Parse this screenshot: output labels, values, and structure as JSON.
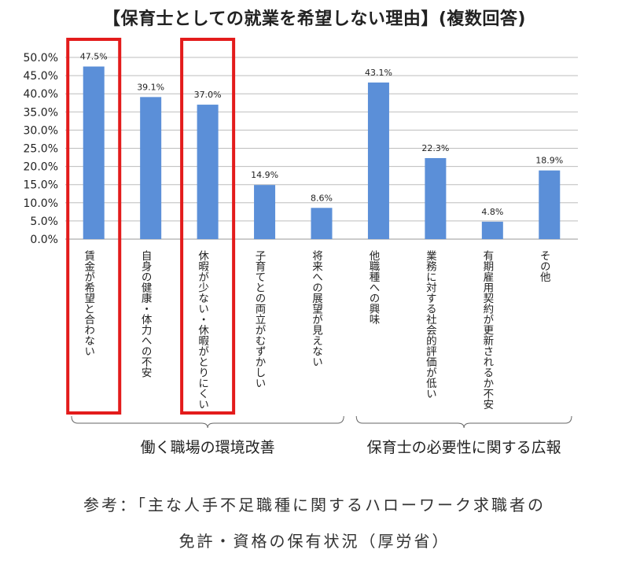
{
  "title": "【保育士としての就業を希望しない理由】(複数回答)",
  "caption_line1": "参考：「主な人手不足職種に関するハローワーク求職者の",
  "caption_line2": "免許・資格の保有状況（厚労省）",
  "colors": {
    "bar": "#5b8fd8",
    "highlight": "#e31b1b",
    "grid": "#bdbdbd"
  },
  "chart_data": {
    "type": "bar",
    "categories": [
      "賃金が希望と合わない",
      "自身の健康・体力への不安",
      "休暇が少ない・休暇がとりにくい",
      "子育てとの両立がむずかしい",
      "将来への展望が見えない",
      "他職種への興味",
      "業務に対する社会的評価が低い",
      "有期雇用契約が更新されるか不安",
      "その他"
    ],
    "values": [
      47.5,
      39.1,
      37.0,
      14.9,
      8.6,
      43.1,
      22.3,
      4.8,
      18.9
    ],
    "data_labels": [
      "47.5%",
      "39.1%",
      "37.0%",
      "14.9%",
      "8.6%",
      "43.1%",
      "22.3%",
      "4.8%",
      "18.9%"
    ],
    "ylim": [
      0,
      50
    ],
    "yticks": [
      "0.0%",
      "5.0%",
      "10.0%",
      "15.0%",
      "20.0%",
      "25.0%",
      "30.0%",
      "35.0%",
      "40.0%",
      "45.0%",
      "50.0%"
    ],
    "grid": true,
    "highlighted_indices": [
      0,
      2
    ],
    "groups": [
      {
        "label": "働く職場の環境改善",
        "from": 0,
        "to": 4
      },
      {
        "label": "保育士の必要性に関する広報",
        "from": 5,
        "to": 8
      }
    ]
  }
}
